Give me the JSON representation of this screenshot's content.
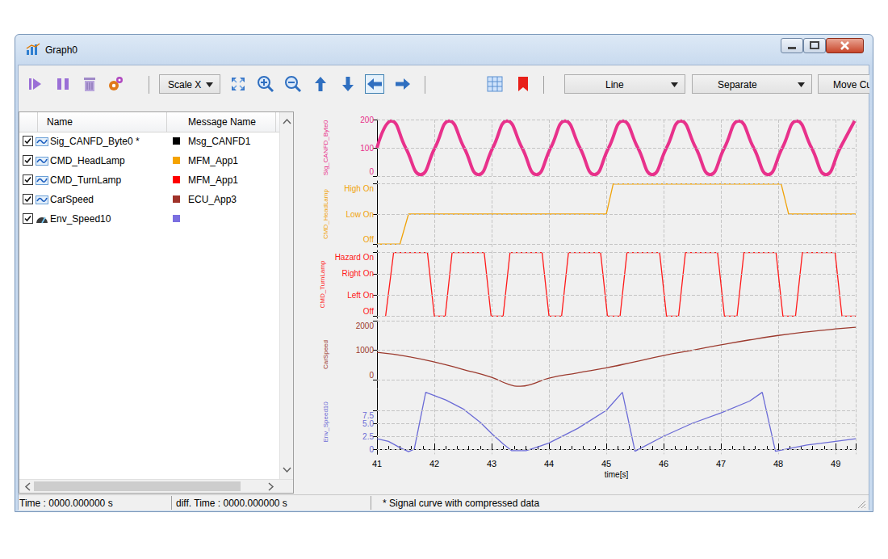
{
  "window": {
    "title": "Graph0"
  },
  "toolbar": {
    "dropdowns": [
      "Scale X",
      "Line",
      "Separate",
      "Move Cu"
    ]
  },
  "table": {
    "header": [
      "Name",
      "Message Name"
    ],
    "rows": [
      {
        "name": "Sig_CANFD_Byte0 *",
        "marker": "wave",
        "color": "#000000",
        "message": "Msg_CANFD1"
      },
      {
        "name": "CMD_HeadLamp",
        "marker": "wave",
        "color": "#f5a300",
        "message": "MFM_App1"
      },
      {
        "name": "CMD_TurnLamp",
        "marker": "wave",
        "color": "#ff0000",
        "message": "MFM_App1"
      },
      {
        "name": "CarSpeed",
        "marker": "wave",
        "color": "#a0332a",
        "message": "ECU_App3"
      },
      {
        "name": "Env_Speed10",
        "marker": "gauge",
        "color": "#7b6fe0"
      }
    ]
  },
  "status": [
    "Time : 0000.000000 s",
    "diff. Time : 0000.000000 s",
    "* Signal curve with compressed data"
  ],
  "chart_data": {
    "type": "line",
    "x_label": "time[s]",
    "xlim": [
      41,
      49.35
    ],
    "xticks": [
      41,
      42,
      43,
      44,
      45,
      46,
      47,
      48,
      49
    ],
    "grid": true,
    "panels": [
      {
        "name": "Sig_CANFD_Byte0",
        "color": "#e8318b",
        "line_style": "thick",
        "ylim": [
          0,
          200
        ],
        "yticks": [
          0,
          100,
          200
        ],
        "x": [
          41.0,
          41.25,
          41.5,
          41.76,
          42.01,
          42.26,
          42.52,
          42.77,
          43.02,
          43.27,
          43.53,
          43.78,
          44.03,
          44.28,
          44.54,
          44.79,
          45.04,
          45.29,
          45.55,
          45.8,
          46.05,
          46.3,
          46.56,
          46.81,
          47.06,
          47.31,
          47.57,
          47.82,
          48.07,
          48.32,
          48.58,
          48.83,
          49.08,
          49.33
        ],
        "values": [
          100,
          195,
          100,
          5,
          100,
          195,
          100,
          5,
          100,
          195,
          100,
          5,
          100,
          195,
          100,
          5,
          100,
          195,
          100,
          5,
          100,
          195,
          100,
          5,
          100,
          195,
          100,
          5,
          100,
          195,
          100,
          5,
          100,
          195
        ]
      },
      {
        "name": "CMD_HeadLamp",
        "color": "#f0a30a",
        "line_style": "solid",
        "ylim": [
          -0.1,
          2.1
        ],
        "yticks": [
          {
            "value": 0,
            "label": "Off"
          },
          {
            "value": 1,
            "label": "Low On"
          },
          {
            "value": 2,
            "label": "High On"
          }
        ],
        "x": [
          41.0,
          41.4,
          41.55,
          45.0,
          45.12,
          48.05,
          48.18,
          49.35
        ],
        "values": [
          0,
          0,
          1,
          1,
          2,
          2,
          1,
          1
        ]
      },
      {
        "name": "CMD_TurnLamp",
        "color": "#ff1a1a",
        "line_style": "solid",
        "ylim": [
          -0.1,
          3.1
        ],
        "yticks": [
          {
            "value": 0,
            "label": "Off"
          },
          {
            "value": 1,
            "label": "Left On"
          },
          {
            "value": 2,
            "label": "Right On"
          },
          {
            "value": 3,
            "label": "Hazard On"
          }
        ],
        "x": [
          41.15,
          41.29,
          41.88,
          42.0,
          42.19,
          42.31,
          42.87,
          42.99,
          43.2,
          43.32,
          43.88,
          44.0,
          44.22,
          44.34,
          44.9,
          45.02,
          45.24,
          45.36,
          45.93,
          46.05,
          46.26,
          46.38,
          46.94,
          47.06,
          47.28,
          47.4,
          47.96,
          48.08,
          48.3,
          48.42,
          48.99,
          49.11,
          49.35
        ],
        "values": [
          0,
          3,
          3,
          0,
          0,
          3,
          3,
          0,
          0,
          3,
          3,
          0,
          0,
          3,
          3,
          0,
          0,
          3,
          3,
          0,
          0,
          3,
          3,
          0,
          0,
          3,
          3,
          0,
          0,
          3,
          3,
          0,
          0
        ]
      },
      {
        "name": "CarSpeed",
        "color": "#9c3a2e",
        "line_style": "smooth",
        "ylim": [
          -300,
          2000
        ],
        "yticks": [
          0,
          1000,
          2000
        ],
        "x": [
          41.0,
          41.5,
          42.0,
          42.5,
          43.0,
          43.3,
          43.5,
          43.7,
          44.0,
          44.5,
          45.0,
          45.5,
          46.0,
          46.5,
          47.0,
          47.5,
          48.0,
          48.5,
          49.0,
          49.35
        ],
        "values": [
          930,
          800,
          600,
          350,
          80,
          -160,
          -220,
          -150,
          50,
          230,
          400,
          610,
          820,
          1000,
          1180,
          1350,
          1500,
          1620,
          1720,
          1780
        ]
      },
      {
        "name": "Env_Speed10",
        "color": "#6b6bd6",
        "line_style": "solid",
        "ylim": [
          -1,
          11.5
        ],
        "yticks": [
          0,
          2.5,
          {
            "value": 5,
            "label": "5.0"
          },
          7.5
        ],
        "x": [
          41.0,
          41.2,
          41.4,
          41.55,
          41.65,
          41.85,
          42.2,
          42.5,
          42.8,
          43.0,
          43.2,
          43.35,
          43.6,
          43.8,
          44.0,
          44.5,
          45.0,
          45.28,
          45.5,
          46.0,
          46.5,
          47.0,
          47.5,
          47.72,
          47.95,
          48.5,
          49.0,
          49.35
        ],
        "values": [
          2.0,
          1.5,
          0.3,
          -0.5,
          0,
          11.0,
          9.5,
          7.8,
          5.2,
          3.0,
          1.0,
          -0.3,
          -0.3,
          0.4,
          1.2,
          4.0,
          7.5,
          11.0,
          -0.4,
          2.5,
          5.0,
          7.0,
          9.3,
          11.0,
          -0.4,
          0.8,
          1.5,
          2.0
        ]
      }
    ]
  }
}
